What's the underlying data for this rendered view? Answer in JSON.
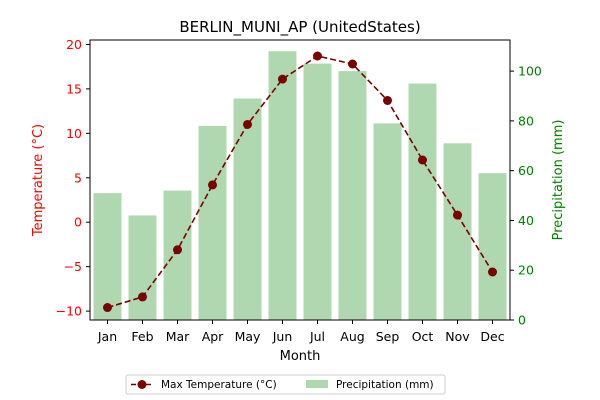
{
  "chart_data": {
    "type": "bar",
    "title": "BERLIN_MUNI_AP (UnitedStates)",
    "xlabel": "Month",
    "ylabel_left": "Temperature (°C)",
    "ylabel_right": "Precipitation (mm)",
    "categories": [
      "Jan",
      "Feb",
      "Mar",
      "Apr",
      "May",
      "Jun",
      "Jul",
      "Aug",
      "Sep",
      "Oct",
      "Nov",
      "Dec"
    ],
    "series": [
      {
        "name": "Precipitation (mm)",
        "kind": "bar",
        "axis": "right",
        "color": "#b0d8b0",
        "values": [
          51,
          42,
          52,
          78,
          89,
          108,
          103,
          100,
          79,
          95,
          71,
          59
        ]
      },
      {
        "name": "Max Temperature (°C)",
        "kind": "line",
        "axis": "left",
        "color": "#7a0000",
        "values": [
          -9.6,
          -8.4,
          -3.1,
          4.2,
          11.0,
          16.1,
          18.7,
          17.8,
          13.7,
          7.0,
          0.8,
          -5.6
        ]
      }
    ],
    "ylim_left": [
      -11,
      20.5
    ],
    "yticks_left": [
      -10,
      -5,
      0,
      5,
      10,
      15,
      20
    ],
    "ylim_right": [
      0,
      112.5
    ],
    "yticks_right": [
      0,
      20,
      40,
      60,
      80,
      100
    ],
    "left_axis_color": "#ff0000",
    "right_axis_color": "#008000",
    "grid": false,
    "legend_position": "bottom-center"
  }
}
